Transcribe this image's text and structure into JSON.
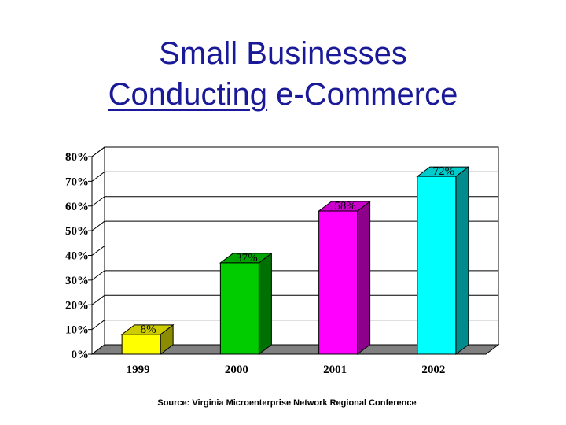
{
  "title": {
    "line1": "Small Businesses",
    "line2_underlined": "Conducting",
    "line2_rest": " e-Commerce"
  },
  "source": "Source: Virginia Microenterprise Network Regional Conference",
  "chart_data": {
    "type": "bar",
    "categories": [
      "1999",
      "2000",
      "2001",
      "2002"
    ],
    "values": [
      8,
      37,
      58,
      72
    ],
    "data_labels": [
      "8%",
      "37%",
      "58%",
      "72%"
    ],
    "colors": [
      "#ffff00",
      "#00cc00",
      "#ff00ff",
      "#00ffff"
    ],
    "ylim": [
      0,
      80
    ],
    "y_ticks": [
      0,
      10,
      20,
      30,
      40,
      50,
      60,
      70,
      80
    ],
    "y_tick_labels": [
      "0%",
      "10%",
      "20%",
      "30%",
      "40%",
      "50%",
      "60%",
      "70%",
      "80%"
    ],
    "grid": true,
    "style": "3d-column",
    "title": "",
    "xlabel": "",
    "ylabel": ""
  }
}
